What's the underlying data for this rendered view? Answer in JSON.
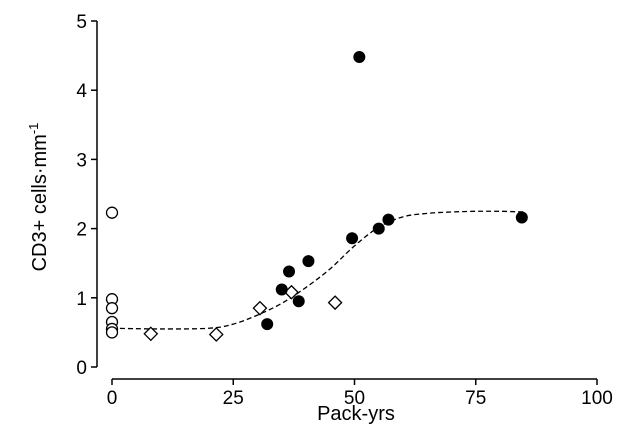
{
  "chart_data": {
    "type": "scatter",
    "title": "",
    "xlabel": "Pack-yrs",
    "ylabel_main": "CD3+  cells·mm",
    "ylabel_superscript": "-1",
    "xlim": [
      0,
      100
    ],
    "ylim": [
      0,
      5
    ],
    "xticks": [
      "0",
      "25",
      "50",
      "75",
      "100"
    ],
    "yticks": [
      "0",
      "1",
      "2",
      "3",
      "4",
      "5"
    ],
    "grid": false,
    "legend": "none",
    "series": [
      {
        "marker": "open-circle",
        "color": "#000000",
        "points": [
          {
            "x": 0,
            "y": 2.23
          },
          {
            "x": 0,
            "y": 0.98
          },
          {
            "x": 0,
            "y": 0.85
          },
          {
            "x": 0,
            "y": 0.65
          },
          {
            "x": 0,
            "y": 0.55
          },
          {
            "x": 0,
            "y": 0.5
          }
        ]
      },
      {
        "marker": "open-diamond",
        "color": "#000000",
        "points": [
          {
            "x": 8,
            "y": 0.48
          },
          {
            "x": 21.5,
            "y": 0.47
          },
          {
            "x": 30.5,
            "y": 0.85
          },
          {
            "x": 37,
            "y": 1.08
          },
          {
            "x": 46,
            "y": 0.93
          }
        ]
      },
      {
        "marker": "filled-circle",
        "color": "#000000",
        "points": [
          {
            "x": 32,
            "y": 0.62
          },
          {
            "x": 35,
            "y": 1.12
          },
          {
            "x": 36.5,
            "y": 1.38
          },
          {
            "x": 38.5,
            "y": 0.95
          },
          {
            "x": 40.5,
            "y": 1.53
          },
          {
            "x": 49.5,
            "y": 1.86
          },
          {
            "x": 51,
            "y": 4.48
          },
          {
            "x": 55,
            "y": 2.0
          },
          {
            "x": 57,
            "y": 2.13
          },
          {
            "x": 84.5,
            "y": 2.16
          }
        ]
      }
    ],
    "fit_curve": {
      "style": "dashed",
      "color": "#000000",
      "x": [
        0,
        10,
        20,
        25,
        30,
        35,
        40,
        45,
        50,
        55,
        60,
        65,
        70,
        75,
        80,
        85
      ],
      "y": [
        0.56,
        0.55,
        0.56,
        0.62,
        0.75,
        0.92,
        1.15,
        1.42,
        1.75,
        2.02,
        2.17,
        2.22,
        2.24,
        2.25,
        2.25,
        2.24
      ]
    }
  }
}
